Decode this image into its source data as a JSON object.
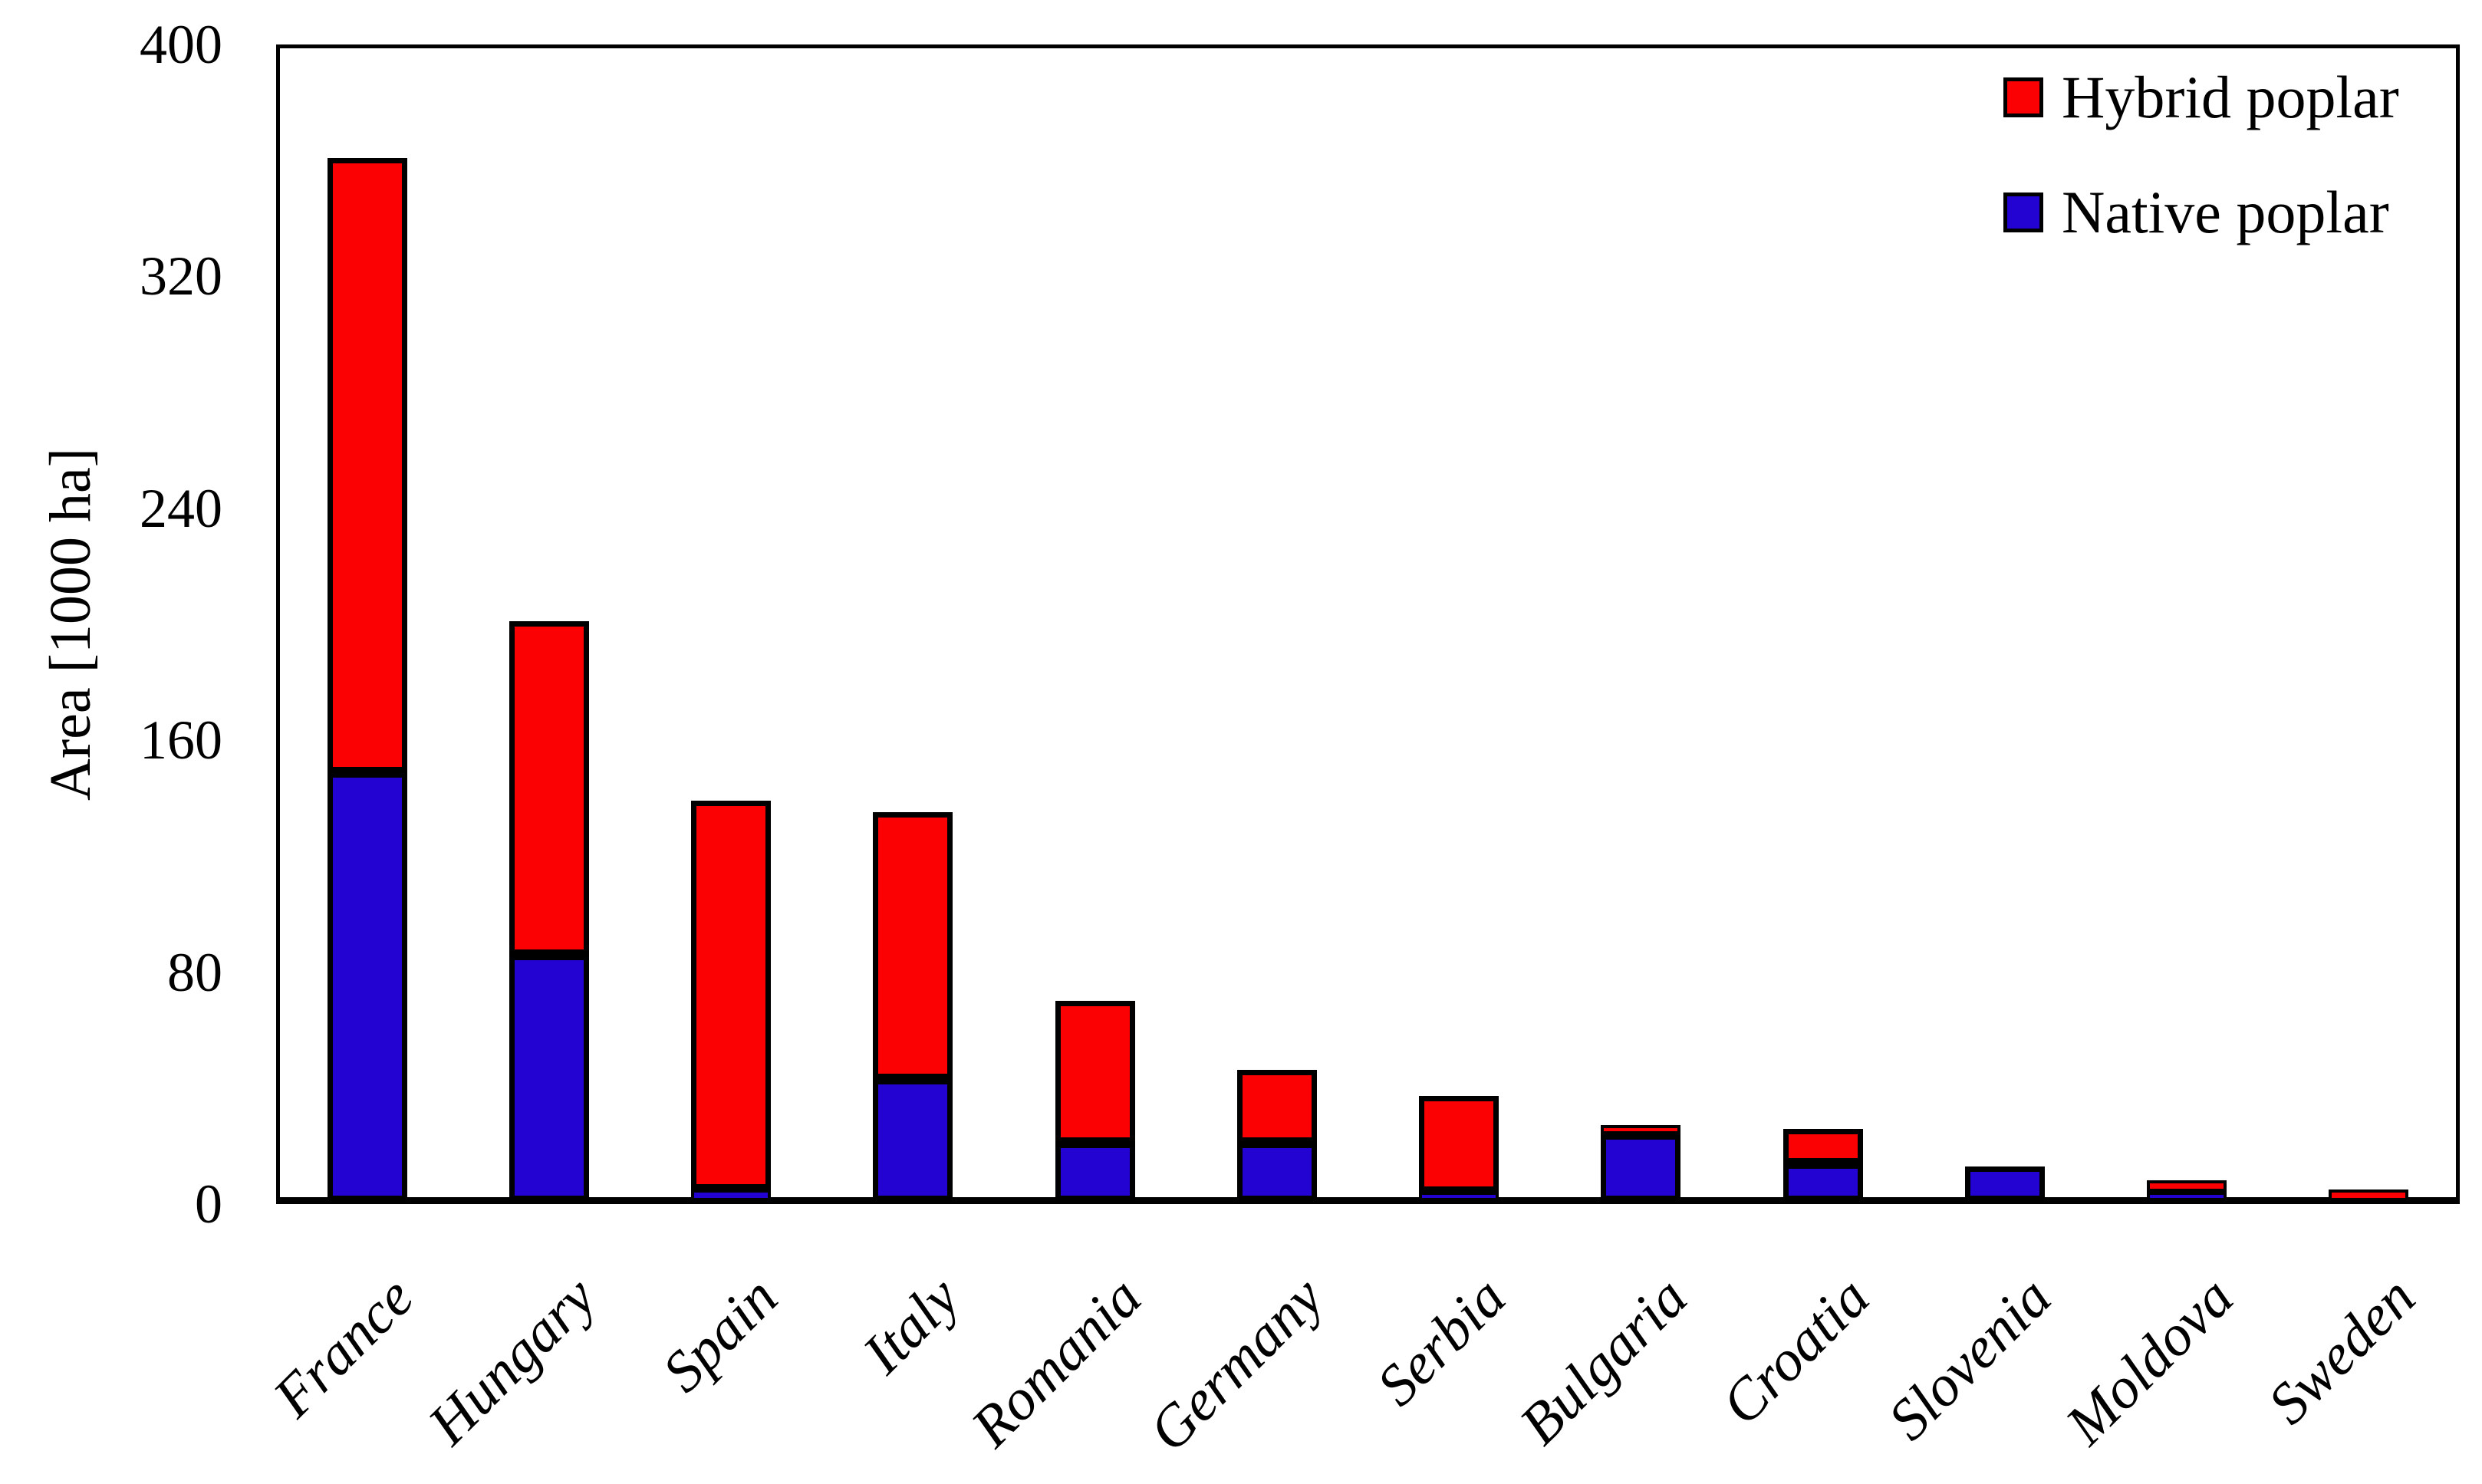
{
  "figure": {
    "ylabel": "Area [1000 ha]"
  },
  "legend": {
    "position": "top-right",
    "items": [
      {
        "label": "Hybrid poplar",
        "color": "#FB0104"
      },
      {
        "label": "Native poplar",
        "color": "#2203D1"
      }
    ]
  },
  "colors": {
    "background": "#FFFFFF",
    "gridline": "#D9D9D9",
    "axis": "#000000",
    "bar_outline": "#000000",
    "hybrid_red": "#FB0104",
    "native_blue": "#2203D1"
  },
  "chart_data": {
    "type": "bar",
    "stacked": true,
    "title": "",
    "xlabel": "",
    "ylabel": "Area [1000 ha]",
    "categories": [
      "France",
      "Hungary",
      "Spain",
      "Italy",
      "Romania",
      "Germany",
      "Serbia",
      "Bulgaria",
      "Croatia",
      "Slovenia",
      "Moldova",
      "Sweden"
    ],
    "series": [
      {
        "name": "Hybrid poplar",
        "color": "#FB0104",
        "values": [
          212,
          115,
          134,
          92,
          49,
          25,
          33,
          3,
          12,
          0,
          4,
          4
        ]
      },
      {
        "name": "Native poplar",
        "color": "#2203D1",
        "values": [
          148,
          85,
          4,
          42,
          20,
          20,
          2,
          23,
          13,
          12,
          3,
          0
        ]
      }
    ],
    "totals": [
      360,
      200,
      138,
      134,
      69,
      45,
      35,
      26,
      25,
      12,
      7,
      4
    ],
    "ylim": [
      0,
      400
    ],
    "yticks": [
      0,
      80,
      160,
      240,
      320,
      400
    ],
    "grid": "horizontal",
    "gridline_values": [
      80,
      160,
      240,
      320
    ],
    "legend_position": "top-right",
    "bar_stack_order_bottom_to_top": [
      "Native poplar",
      "Hybrid poplar"
    ],
    "x_label_rotation_deg": 45,
    "x_label_style": "italic serif"
  }
}
